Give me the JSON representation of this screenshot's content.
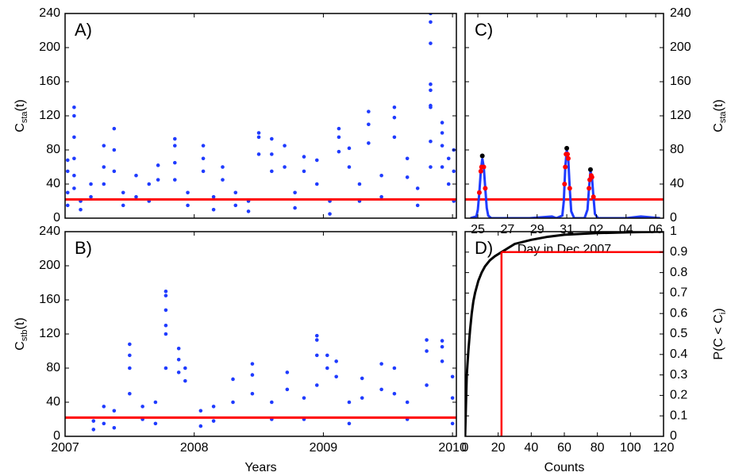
{
  "chart_data": [
    {
      "type": "scatter",
      "panel_label": "A)",
      "ylabel": [
        "C",
        "sta",
        "(t)"
      ],
      "color": "#1f3bff",
      "threshold": 22,
      "threshold_color": "#ff0000",
      "xlim": [
        2007,
        2010.03
      ],
      "xticks": [
        2007,
        2008,
        2009,
        2010
      ],
      "ylim": [
        0,
        240
      ],
      "yticks": [
        0,
        40,
        80,
        120,
        160,
        200,
        240
      ],
      "x": [
        2007.02,
        2007.02,
        2007.02,
        2007.02,
        2007.07,
        2007.07,
        2007.07,
        2007.07,
        2007.07,
        2007.07,
        2007.12,
        2007.12,
        2007.2,
        2007.2,
        2007.3,
        2007.3,
        2007.3,
        2007.38,
        2007.38,
        2007.38,
        2007.45,
        2007.45,
        2007.55,
        2007.55,
        2007.65,
        2007.65,
        2007.72,
        2007.72,
        2007.85,
        2007.85,
        2007.85,
        2007.85,
        2007.95,
        2007.95,
        2008.07,
        2008.07,
        2008.07,
        2008.15,
        2008.15,
        2008.22,
        2008.22,
        2008.32,
        2008.32,
        2008.42,
        2008.42,
        2008.5,
        2008.5,
        2008.5,
        2008.6,
        2008.6,
        2008.6,
        2008.7,
        2008.7,
        2008.78,
        2008.78,
        2008.85,
        2008.85,
        2008.95,
        2008.95,
        2009.05,
        2009.05,
        2009.12,
        2009.12,
        2009.12,
        2009.2,
        2009.2,
        2009.28,
        2009.28,
        2009.35,
        2009.35,
        2009.35,
        2009.45,
        2009.45,
        2009.55,
        2009.55,
        2009.55,
        2009.65,
        2009.65,
        2009.73,
        2009.73,
        2009.83,
        2009.83,
        2009.83,
        2009.83,
        2009.83,
        2009.83,
        2009.83,
        2009.83,
        2009.83,
        2009.92,
        2009.92,
        2009.92,
        2009.92,
        2009.97,
        2009.97,
        2010.01,
        2010.01,
        2010.01
      ],
      "values": [
        15,
        30,
        55,
        68,
        130,
        120,
        95,
        70,
        50,
        35,
        20,
        10,
        25,
        40,
        85,
        60,
        40,
        105,
        80,
        55,
        30,
        15,
        50,
        25,
        40,
        20,
        62,
        45,
        93,
        85,
        65,
        45,
        30,
        15,
        85,
        70,
        55,
        25,
        10,
        60,
        45,
        30,
        15,
        20,
        8,
        100,
        95,
        75,
        93,
        75,
        55,
        85,
        60,
        30,
        12,
        72,
        55,
        68,
        40,
        20,
        5,
        105,
        95,
        78,
        82,
        60,
        40,
        20,
        125,
        110,
        88,
        50,
        25,
        130,
        118,
        95,
        70,
        48,
        35,
        15,
        240,
        230,
        205,
        157,
        150,
        132,
        130,
        90,
        60,
        112,
        100,
        85,
        60,
        70,
        40,
        80,
        55,
        20
      ]
    },
    {
      "type": "scatter",
      "panel_label": "B)",
      "ylabel": [
        "C",
        "stb",
        "(t)"
      ],
      "xlabel": "Years",
      "color": "#1f3bff",
      "threshold": 22,
      "threshold_color": "#ff0000",
      "xlim": [
        2007,
        2010.03
      ],
      "xticks": [
        2007,
        2008,
        2009,
        2010
      ],
      "ylim": [
        0,
        240
      ],
      "yticks": [
        0,
        40,
        80,
        120,
        160,
        200,
        240
      ],
      "x": [
        2007.22,
        2007.22,
        2007.3,
        2007.3,
        2007.38,
        2007.38,
        2007.5,
        2007.5,
        2007.5,
        2007.5,
        2007.6,
        2007.6,
        2007.7,
        2007.7,
        2007.78,
        2007.78,
        2007.78,
        2007.78,
        2007.78,
        2007.78,
        2007.88,
        2007.88,
        2007.88,
        2007.93,
        2007.93,
        2008.05,
        2008.05,
        2008.15,
        2008.15,
        2008.3,
        2008.3,
        2008.45,
        2008.45,
        2008.45,
        2008.6,
        2008.6,
        2008.72,
        2008.72,
        2008.85,
        2008.85,
        2008.95,
        2008.95,
        2008.95,
        2008.95,
        2009.03,
        2009.03,
        2009.1,
        2009.1,
        2009.2,
        2009.2,
        2009.3,
        2009.3,
        2009.45,
        2009.45,
        2009.55,
        2009.55,
        2009.65,
        2009.65,
        2009.8,
        2009.8,
        2009.8,
        2009.92,
        2009.92,
        2009.92,
        2010.0,
        2010.0,
        2010.0
      ],
      "values": [
        18,
        8,
        35,
        15,
        30,
        10,
        108,
        95,
        80,
        50,
        35,
        20,
        40,
        15,
        170,
        165,
        148,
        130,
        120,
        80,
        103,
        90,
        75,
        80,
        65,
        30,
        12,
        35,
        18,
        67,
        40,
        85,
        72,
        50,
        40,
        20,
        75,
        55,
        45,
        20,
        118,
        113,
        95,
        60,
        95,
        80,
        88,
        70,
        40,
        15,
        68,
        45,
        85,
        55,
        80,
        50,
        40,
        20,
        113,
        100,
        60,
        112,
        105,
        88,
        70,
        45,
        15
      ]
    },
    {
      "type": "line",
      "panel_label": "C)",
      "ylabel": [
        "C",
        "sta",
        "(t)"
      ],
      "xlabel": "Day in Dec 2007",
      "color": "#1f3bff",
      "threshold": 22,
      "threshold_color": "#ff0000",
      "xlim": [
        24.14,
        37.53
      ],
      "xticks": [
        25,
        27,
        29,
        31,
        {
          "value": 33,
          "label": "02"
        },
        {
          "value": 35,
          "label": "04"
        },
        {
          "value": 37,
          "label": "06"
        }
      ],
      "ylim": [
        0,
        240
      ],
      "yticks": [
        0,
        40,
        80,
        120,
        160,
        200,
        240
      ],
      "x": [
        24.5,
        24.9,
        25.0,
        25.1,
        25.2,
        25.3,
        25.4,
        25.5,
        25.6,
        25.7,
        25.9,
        27,
        28.5,
        30.0,
        30.3,
        30.7,
        30.8,
        30.9,
        31.0,
        31.1,
        31.2,
        31.3,
        31.5,
        32.2,
        32.4,
        32.5,
        32.6,
        32.7,
        32.8,
        32.9,
        33.1,
        35,
        36,
        37.3
      ],
      "values": [
        0,
        2,
        10,
        30,
        55,
        70,
        60,
        35,
        12,
        3,
        0,
        0,
        0,
        2,
        0,
        3,
        20,
        60,
        80,
        70,
        35,
        8,
        0,
        0,
        10,
        35,
        55,
        48,
        25,
        5,
        0,
        0,
        2,
        0
      ],
      "crossings": {
        "color": "#ff0000",
        "x": [
          25.1,
          25.2,
          25.25,
          25.4,
          25.5,
          30.85,
          30.9,
          30.95,
          31.05,
          31.1,
          31.2,
          32.5,
          32.55,
          32.65,
          32.7,
          32.8
        ],
        "values": [
          30,
          55,
          60,
          60,
          35,
          40,
          60,
          75,
          75,
          70,
          35,
          35,
          45,
          50,
          48,
          25
        ]
      },
      "peaks": {
        "color": "#000000",
        "x": [
          25.3,
          31.0,
          32.6
        ],
        "values": [
          73,
          82,
          57
        ]
      }
    },
    {
      "type": "line",
      "panel_label": "D)",
      "ylabel": [
        "P(C < C",
        "i",
        ")"
      ],
      "xlabel": "Counts",
      "color": "#000000",
      "threshold": 22,
      "threshold_p": 0.9,
      "threshold_color": "#ff0000",
      "xlim": [
        0,
        120
      ],
      "xticks": [
        0,
        20,
        40,
        60,
        80,
        100,
        120
      ],
      "ylim": [
        0,
        1
      ],
      "yticks": [
        0,
        0.1,
        0.2,
        0.3,
        0.4,
        0.5,
        0.6,
        0.7,
        0.8,
        0.9,
        1
      ],
      "x": [
        0,
        1,
        2,
        3,
        4,
        5,
        6,
        8,
        10,
        12,
        15,
        18,
        22,
        26,
        30,
        40,
        50,
        60,
        80,
        100,
        120
      ],
      "values": [
        0,
        0.3,
        0.42,
        0.52,
        0.6,
        0.66,
        0.7,
        0.76,
        0.8,
        0.83,
        0.86,
        0.88,
        0.9,
        0.92,
        0.94,
        0.96,
        0.975,
        0.985,
        0.993,
        0.997,
        1
      ]
    }
  ]
}
